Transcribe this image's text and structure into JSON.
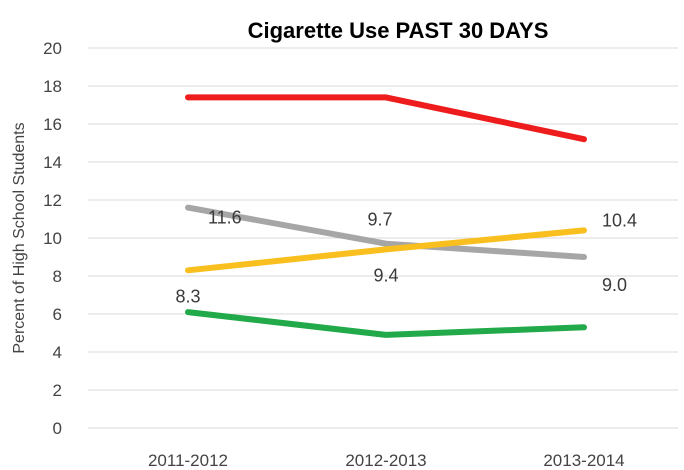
{
  "chart_data": {
    "type": "line",
    "title": "Cigarette Use PAST 30 DAYS",
    "xlabel": "",
    "ylabel": "Percent of High School Students",
    "categories": [
      "2011-2012",
      "2012-2013",
      "2013-2014"
    ],
    "ylim": [
      0,
      20
    ],
    "yticks": [
      0,
      2,
      4,
      6,
      8,
      10,
      12,
      14,
      16,
      18,
      20
    ],
    "grid": true,
    "legend": "none",
    "series": [
      {
        "color": "#ee1c1c",
        "values": [
          17.4,
          17.4,
          15.2
        ],
        "labels": [
          "",
          "",
          ""
        ]
      },
      {
        "color": "#a6a6a6",
        "values": [
          11.6,
          9.7,
          9.0
        ],
        "labels": [
          "11.6",
          "9.7",
          "9.0"
        ]
      },
      {
        "color": "#f9bf1e",
        "values": [
          8.3,
          9.4,
          10.4
        ],
        "labels": [
          "8.3",
          "9.4",
          "10.4"
        ]
      },
      {
        "color": "#22a94a",
        "values": [
          6.1,
          4.9,
          5.3
        ],
        "labels": [
          "",
          "",
          ""
        ]
      }
    ]
  }
}
